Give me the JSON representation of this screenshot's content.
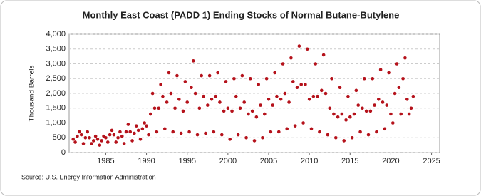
{
  "chart_data": {
    "type": "scatter",
    "title": "Monthly East Coast (PADD 1) Ending Stocks of Normal Butane-Butylene",
    "y_label": "Thousand Barrels",
    "source": "Source: U.S. Energy Information Administration",
    "color": "#b5121b",
    "grid": true,
    "xlim": [
      1980.5,
      2026
    ],
    "xticks": [
      1985,
      1990,
      1995,
      2000,
      2005,
      2010,
      2015,
      2020,
      2025
    ],
    "ylim": [
      0,
      4000
    ],
    "yticks": [
      0,
      500,
      {
        "value": 1000,
        "label": "1,000"
      },
      {
        "value": 1500,
        "label": "1,500"
      },
      {
        "value": 2000,
        "label": "2,000"
      },
      {
        "value": 2500,
        "label": "2,500"
      },
      {
        "value": 3000,
        "label": "3,000"
      },
      {
        "value": 3500,
        "label": "3,500"
      },
      {
        "value": 4000,
        "label": "4,000"
      }
    ],
    "x": [
      1981,
      1981.25,
      1981.5,
      1981.75,
      1982,
      1982.25,
      1982.5,
      1982.75,
      1983,
      1983.25,
      1983.5,
      1983.75,
      1984,
      1984.25,
      1984.5,
      1984.75,
      1985,
      1985.25,
      1985.5,
      1985.75,
      1986,
      1986.25,
      1986.5,
      1986.75,
      1987,
      1987.25,
      1987.5,
      1987.75,
      1988,
      1988.25,
      1988.5,
      1988.75,
      1989,
      1989.25,
      1989.5,
      1989.75,
      1990,
      1990.25,
      1990.5,
      1990.75,
      1991,
      1991.25,
      1991.5,
      1991.75,
      1992,
      1992.25,
      1992.5,
      1992.75,
      1993,
      1993.25,
      1993.5,
      1993.75,
      1994,
      1994.25,
      1994.5,
      1994.75,
      1995,
      1995.25,
      1995.5,
      1995.75,
      1996,
      1996.25,
      1996.5,
      1996.75,
      1997,
      1997.25,
      1997.5,
      1997.75,
      1998,
      1998.25,
      1998.5,
      1998.75,
      1999,
      1999.25,
      1999.5,
      1999.75,
      2000,
      2000.25,
      2000.5,
      2000.75,
      2001,
      2001.25,
      2001.5,
      2001.75,
      2002,
      2002.25,
      2002.5,
      2002.75,
      2003,
      2003.25,
      2003.5,
      2003.75,
      2004,
      2004.25,
      2004.5,
      2004.75,
      2005,
      2005.25,
      2005.5,
      2005.75,
      2006,
      2006.25,
      2006.5,
      2006.75,
      2007,
      2007.25,
      2007.5,
      2007.75,
      2008,
      2008.25,
      2008.5,
      2008.75,
      2009,
      2009.25,
      2009.5,
      2009.75,
      2010,
      2010.25,
      2010.5,
      2010.75,
      2011,
      2011.25,
      2011.5,
      2011.75,
      2012,
      2012.25,
      2012.5,
      2012.75,
      2013,
      2013.25,
      2013.5,
      2013.75,
      2014,
      2014.25,
      2014.5,
      2014.75,
      2015,
      2015.25,
      2015.5,
      2015.75,
      2016,
      2016.25,
      2016.5,
      2016.75,
      2017,
      2017.25,
      2017.5,
      2017.75,
      2018,
      2018.25,
      2018.5,
      2018.75,
      2019,
      2019.25,
      2019.5,
      2019.75,
      2020,
      2020.25,
      2020.5,
      2020.75,
      2021,
      2021.25,
      2021.5,
      2021.75,
      2022,
      2022.25,
      2022.5,
      2022.75
    ],
    "values": [
      450,
      350,
      550,
      700,
      600,
      300,
      500,
      700,
      500,
      300,
      400,
      550,
      450,
      250,
      400,
      550,
      500,
      350,
      600,
      750,
      600,
      350,
      500,
      700,
      550,
      300,
      700,
      950,
      700,
      400,
      650,
      900,
      750,
      450,
      800,
      1000,
      900,
      600,
      1300,
      2000,
      1500,
      700,
      1500,
      2300,
      1900,
      800,
      1700,
      2700,
      2000,
      700,
      1500,
      2600,
      1800,
      650,
      1400,
      2400,
      1700,
      700,
      2200,
      3100,
      2000,
      600,
      1500,
      2600,
      1900,
      650,
      1600,
      2600,
      1800,
      700,
      1900,
      2700,
      1700,
      600,
      1400,
      2400,
      1500,
      450,
      1400,
      2500,
      1900,
      600,
      1500,
      2600,
      1700,
      500,
      1300,
      2500,
      1400,
      400,
      1200,
      2300,
      1600,
      500,
      1300,
      2500,
      1800,
      700,
      1600,
      2700,
      1900,
      700,
      1800,
      3000,
      2000,
      800,
      1700,
      3200,
      2400,
      900,
      2200,
      3600,
      2300,
      1000,
      2300,
      3500,
      1800,
      800,
      1900,
      3000,
      1900,
      700,
      2100,
      3300,
      2000,
      600,
      1500,
      2500,
      1300,
      500,
      1200,
      2200,
      1300,
      400,
      1100,
      1900,
      1200,
      500,
      1300,
      2100,
      1600,
      700,
      1500,
      2500,
      1400,
      600,
      1400,
      2500,
      1600,
      700,
      1800,
      2800,
      1700,
      800,
      1600,
      2700,
      1300,
      1000,
      2000,
      3000,
      2200,
      1300,
      2500,
      3200,
      1800,
      1300,
      1500,
      1900
    ]
  }
}
